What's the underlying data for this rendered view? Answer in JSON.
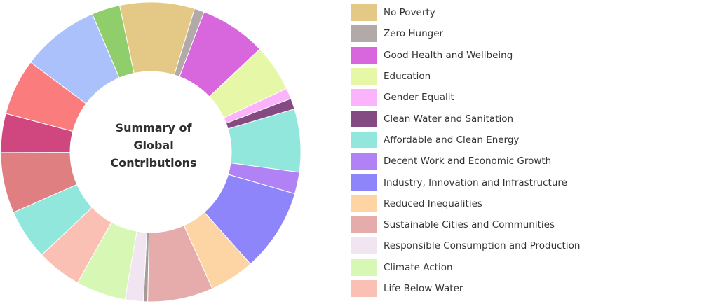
{
  "chart_data": {
    "type": "pie",
    "title": "Summary of Global Contributions",
    "donut": true,
    "legend_position": "right",
    "slices": [
      {
        "label": "No Poverty",
        "value": 9.0,
        "color": "#e4c986"
      },
      {
        "label": "Zero Hunger",
        "value": 1.2,
        "color": "#b2a9a9"
      },
      {
        "label": "Good Health and Wellbeing",
        "value": 8.0,
        "color": "#d866dd"
      },
      {
        "label": "Education",
        "value": 5.7,
        "color": "#e6f7a8"
      },
      {
        "label": "Gender Equalit",
        "value": 1.3,
        "color": "#fbb4fb"
      },
      {
        "label": "Clean Water and Sanitation",
        "value": 1.3,
        "color": "#834b82"
      },
      {
        "label": "Affordable and Clean Energy",
        "value": 7.6,
        "color": "#92e7dc"
      },
      {
        "label": "Decent Work and Economic Growth",
        "value": 2.6,
        "color": "#b182f5"
      },
      {
        "label": "Industry, Innovation and Infrastructure",
        "value": 10.0,
        "color": "#8e85fa"
      },
      {
        "label": "Reduced Inequalities",
        "value": 5.4,
        "color": "#fdd5a5"
      },
      {
        "label": "Sustainable Cities and Communities",
        "value": 7.9,
        "color": "#e6abab"
      },
      {
        "label": "",
        "value": 0.5,
        "color": "#a99a9a"
      },
      {
        "label": "Responsible Consumption and Production",
        "value": 2.2,
        "color": "#f0e5f0"
      },
      {
        "label": "Climate Action",
        "value": 6.0,
        "color": "#d7f8b4"
      },
      {
        "label": "Life Below Water",
        "value": 5.4,
        "color": "#fbc0b4"
      },
      {
        "label": "",
        "value": 6.1,
        "color": "#92e7dc"
      },
      {
        "label": "",
        "value": 7.3,
        "color": "#e07f82"
      },
      {
        "label": "",
        "value": 4.7,
        "color": "#d0467f"
      },
      {
        "label": "",
        "value": 6.8,
        "color": "#fb7c7c"
      },
      {
        "label": "",
        "value": 9.4,
        "color": "#aac1fb"
      },
      {
        "label": "",
        "value": 3.4,
        "color": "#90cd6b"
      }
    ]
  }
}
